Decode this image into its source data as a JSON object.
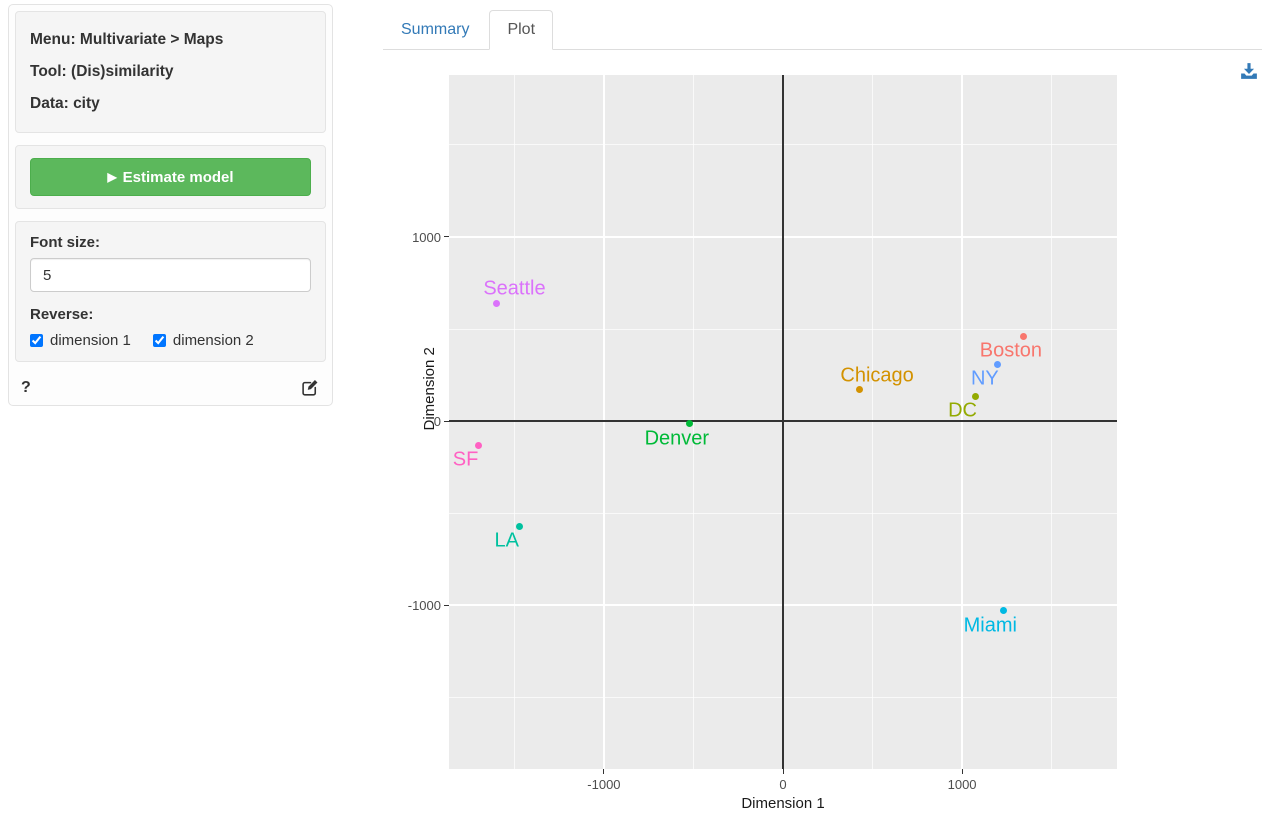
{
  "sidebar": {
    "info": {
      "menu": "Menu: Multivariate > Maps",
      "tool": "Tool: (Dis)similarity",
      "data": "Data: city"
    },
    "estimate_button": {
      "label": "Estimate model",
      "icon": "play-icon",
      "color": "#5cb85c"
    },
    "settings": {
      "font_size_label": "Font size:",
      "font_size_value": "5",
      "reverse_label": "Reverse:",
      "checkboxes": [
        {
          "label": "dimension 1",
          "checked": true
        },
        {
          "label": "dimension 2",
          "checked": true
        }
      ]
    },
    "footer": {
      "help_label": "?",
      "edit_icon": "edit-icon"
    }
  },
  "tabs": [
    {
      "label": "Summary",
      "active": false
    },
    {
      "label": "Plot",
      "active": true
    }
  ],
  "plot_toolbar": {
    "download_icon": "download-icon",
    "icon_color": "#337ab7"
  },
  "chart_data": {
    "type": "scatter",
    "title": "",
    "xlabel": "Dimension 1",
    "ylabel": "Dimension 2",
    "xlim": [
      -1865,
      1865
    ],
    "ylim": [
      -1890,
      1880
    ],
    "x_ticks": [
      -1000,
      0,
      1000
    ],
    "y_ticks": [
      -1000,
      0,
      1000
    ],
    "x_minor_ticks": [
      -1500,
      -500,
      500,
      1500
    ],
    "y_minor_ticks": [
      -1500,
      -500,
      500,
      1500
    ],
    "grid": true,
    "zero_lines": true,
    "panel_bg": "#EBEBEB",
    "points": [
      {
        "name": "Seattle",
        "x": -1600,
        "y": 640,
        "color": "#DB72FB",
        "label_pos": "above"
      },
      {
        "name": "SF",
        "x": -1700,
        "y": -130,
        "color": "#FF61C3",
        "label_pos": "below"
      },
      {
        "name": "LA",
        "x": -1470,
        "y": -570,
        "color": "#00C19F",
        "label_pos": "below"
      },
      {
        "name": "Denver",
        "x": -520,
        "y": -15,
        "color": "#00BA38",
        "label_pos": "below"
      },
      {
        "name": "Chicago",
        "x": 425,
        "y": 170,
        "color": "#D39200",
        "label_pos": "above"
      },
      {
        "name": "DC",
        "x": 1075,
        "y": 135,
        "color": "#93AA00",
        "label_pos": "below"
      },
      {
        "name": "NY",
        "x": 1200,
        "y": 310,
        "color": "#619CFF",
        "label_pos": "below"
      },
      {
        "name": "Boston",
        "x": 1345,
        "y": 460,
        "color": "#F8766D",
        "label_pos": "below"
      },
      {
        "name": "Miami",
        "x": 1230,
        "y": -1030,
        "color": "#00B9E3",
        "label_pos": "below"
      }
    ]
  }
}
